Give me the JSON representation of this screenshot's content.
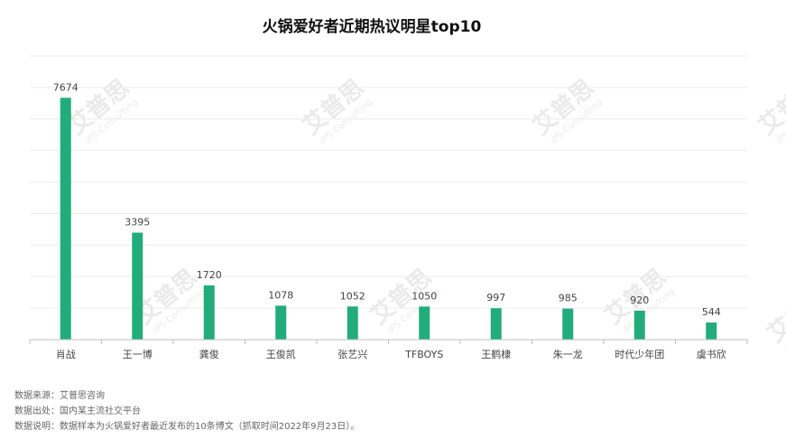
{
  "chart_data": {
    "type": "bar",
    "title": "火锅爱好者近期热议明星top10",
    "categories": [
      "肖战",
      "王一博",
      "龚俊",
      "王俊凯",
      "张艺兴",
      "TFBOYS",
      "王鹤棣",
      "朱一龙",
      "时代少年团",
      "虞书欣"
    ],
    "values": [
      7674,
      3395,
      1720,
      1078,
      1052,
      1050,
      997,
      985,
      920,
      544
    ],
    "value_labels": [
      "7674",
      "3395",
      "1720",
      "1078",
      "1052",
      "1050",
      "997",
      "985",
      "920",
      "544"
    ],
    "ylim": [
      0,
      9000
    ],
    "grid": true,
    "bar_color": "#22ac7c"
  },
  "notes": {
    "source": "数据来源：艾普思咨询",
    "origin": "数据出处：国内某主流社交平台",
    "description": "数据说明：数据样本为火锅爱好者最近发布的10条博文（抓取时间2022年9月23日）。"
  },
  "watermark": {
    "brand": "艾普思",
    "sub": "iPS Consulting"
  }
}
